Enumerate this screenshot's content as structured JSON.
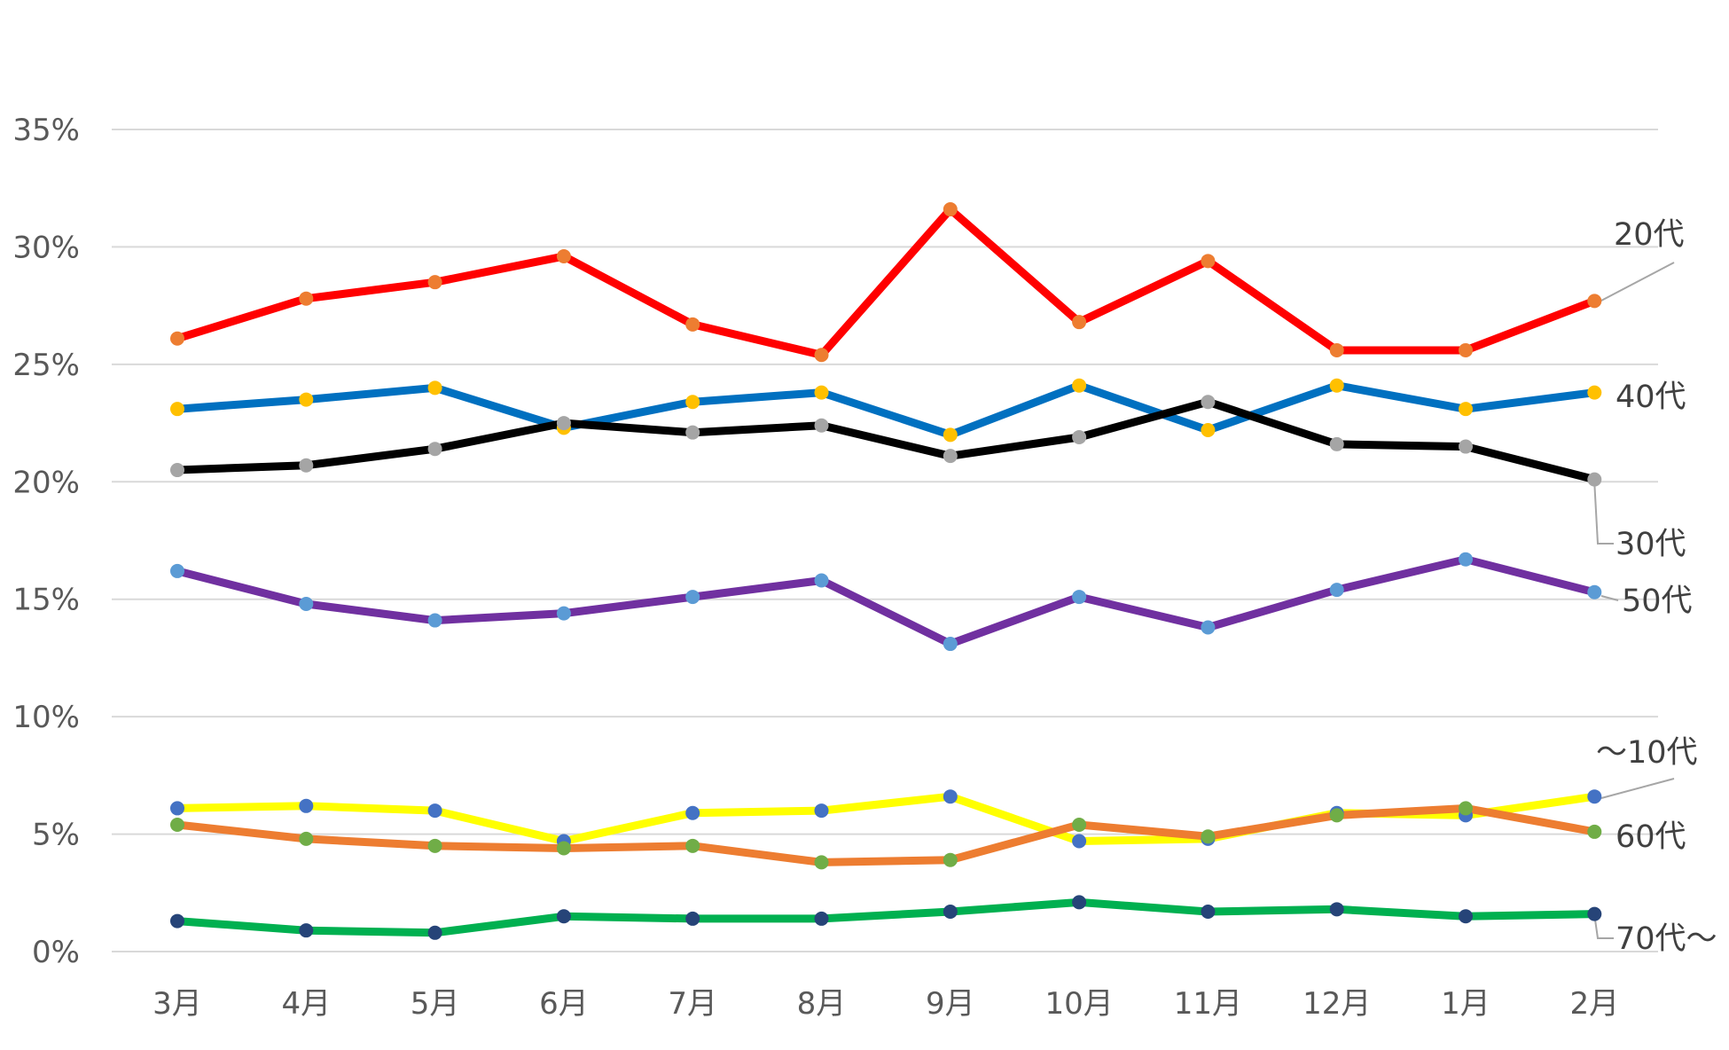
{
  "chart_data": {
    "type": "line",
    "categories": [
      "3月",
      "4月",
      "5月",
      "6月",
      "7月",
      "8月",
      "9月",
      "10月",
      "11月",
      "12月",
      "1月",
      "2月"
    ],
    "ylim": [
      0,
      35
    ],
    "y_ticks": [
      0,
      5,
      10,
      15,
      20,
      25,
      30,
      35
    ],
    "y_tick_labels": [
      "0%",
      "5%",
      "10%",
      "15%",
      "20%",
      "25%",
      "30%",
      "35%"
    ],
    "grid": true,
    "title": "",
    "xlabel": "",
    "ylabel": "",
    "series": [
      {
        "name": "20代",
        "line_color": "#ff0000",
        "marker_color": "#ed7d31",
        "values": [
          26.1,
          27.8,
          28.5,
          29.6,
          26.7,
          25.4,
          31.6,
          26.8,
          29.4,
          25.6,
          25.6,
          27.7
        ]
      },
      {
        "name": "40代",
        "line_color": "#0070c0",
        "marker_color": "#ffc000",
        "values": [
          23.1,
          23.5,
          24.0,
          22.3,
          23.4,
          23.8,
          22.0,
          24.1,
          22.2,
          24.1,
          23.1,
          23.8
        ]
      },
      {
        "name": "30代",
        "line_color": "#000000",
        "marker_color": "#a5a5a5",
        "values": [
          20.5,
          20.7,
          21.4,
          22.5,
          22.1,
          22.4,
          21.1,
          21.9,
          23.4,
          21.6,
          21.5,
          20.1
        ]
      },
      {
        "name": "50代",
        "line_color": "#7030a0",
        "marker_color": "#5b9bd5",
        "values": [
          16.2,
          14.8,
          14.1,
          14.4,
          15.1,
          15.8,
          13.1,
          15.1,
          13.8,
          15.4,
          16.7,
          15.3
        ]
      },
      {
        "name": "～10代",
        "line_color": "#ffff00",
        "marker_color": "#4472c4",
        "values": [
          6.1,
          6.2,
          6.0,
          4.7,
          5.9,
          6.0,
          6.6,
          4.7,
          4.8,
          5.9,
          5.8,
          6.6
        ]
      },
      {
        "name": "60代",
        "line_color": "#ed7d31",
        "marker_color": "#70ad47",
        "values": [
          5.4,
          4.8,
          4.5,
          4.4,
          4.5,
          3.8,
          3.9,
          5.4,
          4.9,
          5.8,
          6.1,
          5.1
        ]
      },
      {
        "name": "70代～",
        "line_color": "#00b050",
        "marker_color": "#264478",
        "values": [
          1.3,
          0.9,
          0.8,
          1.5,
          1.4,
          1.4,
          1.7,
          2.1,
          1.7,
          1.8,
          1.5,
          1.6
        ]
      }
    ]
  }
}
